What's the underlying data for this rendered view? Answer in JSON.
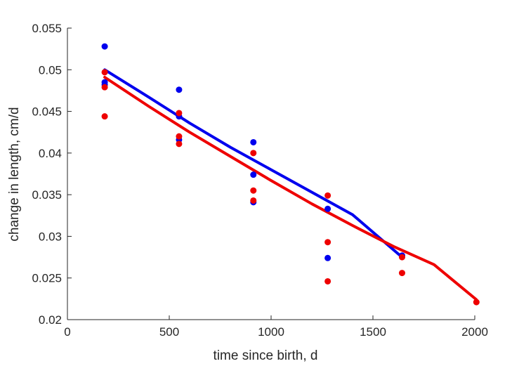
{
  "chart_data": {
    "type": "scatter",
    "title": "",
    "xlabel": "time since birth, d",
    "ylabel": "change in length, cm/d",
    "xlim": [
      0,
      2000
    ],
    "ylim": [
      0.02,
      0.055
    ],
    "xticks": [
      0,
      500,
      1000,
      1500,
      2000
    ],
    "xtick_labels": [
      "0",
      "500",
      "1000",
      "1500",
      "2000"
    ],
    "yticks": [
      0.02,
      0.025,
      0.03,
      0.035,
      0.04,
      0.045,
      0.05,
      0.055
    ],
    "ytick_labels": [
      "0.02",
      "0.025",
      "0.03",
      "0.035",
      "0.04",
      "0.045",
      "0.05",
      "0.055"
    ],
    "grid": false,
    "legend": "none",
    "series": [
      {
        "color": "#0000ee",
        "points": [
          [
            183,
            0.0528
          ],
          [
            183,
            0.0485
          ],
          [
            183,
            0.0482
          ],
          [
            548,
            0.0476
          ],
          [
            548,
            0.0444
          ],
          [
            548,
            0.0416
          ],
          [
            913,
            0.0413
          ],
          [
            913,
            0.0374
          ],
          [
            913,
            0.0341
          ],
          [
            1278,
            0.0333
          ],
          [
            1278,
            0.0274
          ],
          [
            1643,
            0.0277
          ]
        ],
        "fit": [
          [
            183,
            0.05
          ],
          [
            400,
            0.0467
          ],
          [
            600,
            0.0436
          ],
          [
            800,
            0.0407
          ],
          [
            1000,
            0.038
          ],
          [
            1200,
            0.0353
          ],
          [
            1400,
            0.0326
          ],
          [
            1643,
            0.0275
          ]
        ]
      },
      {
        "color": "#ee0000",
        "points": [
          [
            183,
            0.0497
          ],
          [
            183,
            0.0479
          ],
          [
            183,
            0.0444
          ],
          [
            548,
            0.0448
          ],
          [
            548,
            0.042
          ],
          [
            548,
            0.0411
          ],
          [
            913,
            0.04
          ],
          [
            913,
            0.0355
          ],
          [
            913,
            0.0343
          ],
          [
            1278,
            0.0349
          ],
          [
            1278,
            0.0293
          ],
          [
            1278,
            0.0246
          ],
          [
            1643,
            0.0275
          ],
          [
            1643,
            0.0256
          ],
          [
            2008,
            0.0221
          ]
        ],
        "fit": [
          [
            183,
            0.0491
          ],
          [
            400,
            0.0456
          ],
          [
            600,
            0.0425
          ],
          [
            800,
            0.0396
          ],
          [
            1000,
            0.0367
          ],
          [
            1200,
            0.0339
          ],
          [
            1400,
            0.0313
          ],
          [
            1600,
            0.0288
          ],
          [
            1800,
            0.0266
          ],
          [
            2008,
            0.0224
          ]
        ]
      }
    ]
  }
}
